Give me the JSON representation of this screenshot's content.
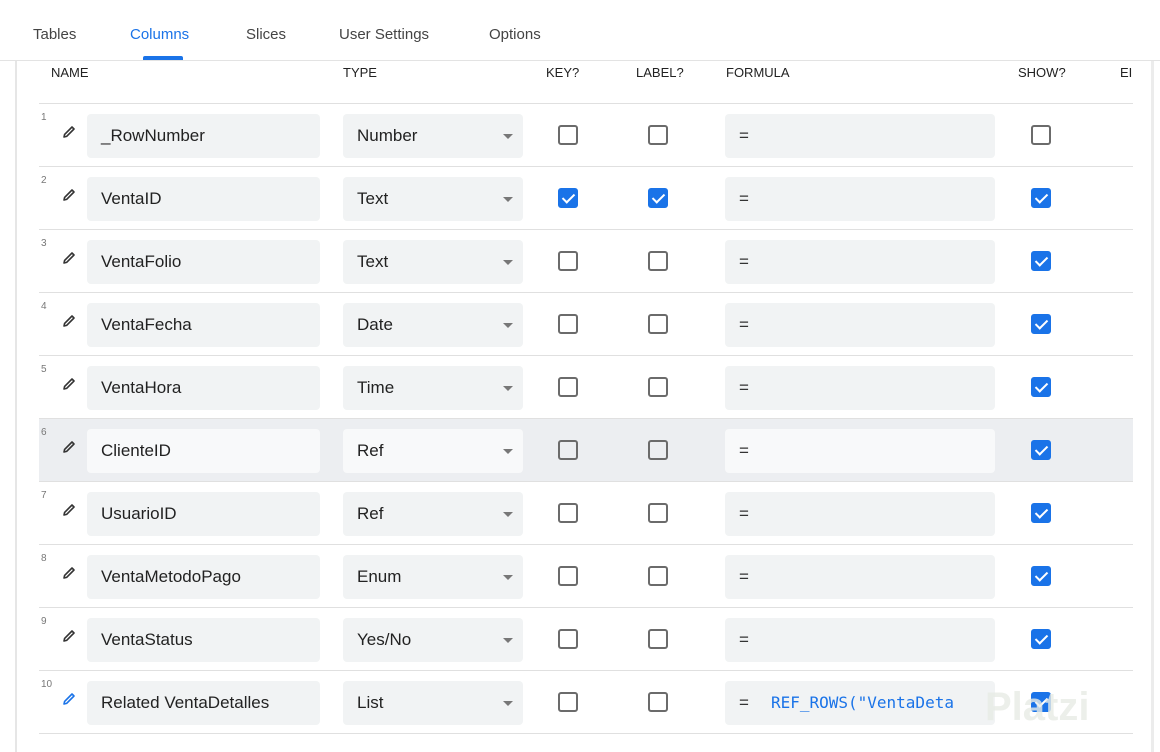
{
  "tabs": [
    {
      "label": "Tables",
      "active": false
    },
    {
      "label": "Columns",
      "active": true
    },
    {
      "label": "Slices",
      "active": false
    },
    {
      "label": "User Settings",
      "active": false
    },
    {
      "label": "Options",
      "active": false
    }
  ],
  "headers": {
    "name": "NAME",
    "type": "TYPE",
    "key": "KEY?",
    "label": "LABEL?",
    "formula": "FORMULA",
    "show": "SHOW?",
    "editable": "EI"
  },
  "rows": [
    {
      "num": "1",
      "name": "_RowNumber",
      "type": "Number",
      "key": false,
      "label": false,
      "formula": "=",
      "formula_expr": "",
      "show": false
    },
    {
      "num": "2",
      "name": "VentaID",
      "type": "Text",
      "key": true,
      "label": true,
      "formula": "=",
      "formula_expr": "",
      "show": true
    },
    {
      "num": "3",
      "name": "VentaFolio",
      "type": "Text",
      "key": false,
      "label": false,
      "formula": "=",
      "formula_expr": "",
      "show": true
    },
    {
      "num": "4",
      "name": "VentaFecha",
      "type": "Date",
      "key": false,
      "label": false,
      "formula": "=",
      "formula_expr": "",
      "show": true
    },
    {
      "num": "5",
      "name": "VentaHora",
      "type": "Time",
      "key": false,
      "label": false,
      "formula": "=",
      "formula_expr": "",
      "show": true
    },
    {
      "num": "6",
      "name": "ClienteID",
      "type": "Ref",
      "key": false,
      "label": false,
      "formula": "=",
      "formula_expr": "",
      "show": true,
      "highlighted": true
    },
    {
      "num": "7",
      "name": "UsuarioID",
      "type": "Ref",
      "key": false,
      "label": false,
      "formula": "=",
      "formula_expr": "",
      "show": true
    },
    {
      "num": "8",
      "name": "VentaMetodoPago",
      "type": "Enum",
      "key": false,
      "label": false,
      "formula": "=",
      "formula_expr": "",
      "show": true
    },
    {
      "num": "9",
      "name": "VentaStatus",
      "type": "Yes/No",
      "key": false,
      "label": false,
      "formula": "=",
      "formula_expr": "",
      "show": true
    },
    {
      "num": "10",
      "name": "Related VentaDetalles",
      "type": "List",
      "key": false,
      "label": false,
      "formula": "=",
      "formula_expr": "REF_ROWS(\"VentaDeta",
      "show": true,
      "pencil_color": "#1a73e8"
    }
  ],
  "watermark": "Platzi",
  "colors": {
    "accent": "#1a73e8",
    "highlight_row": "#eceef1",
    "field_bg": "#f1f3f4"
  }
}
